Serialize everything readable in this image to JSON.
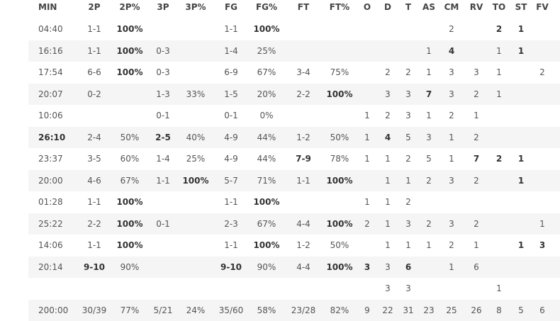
{
  "table": {
    "columns": [
      "MIN",
      "2P",
      "2P%",
      "3P",
      "3P%",
      "FG",
      "FG%",
      "FT",
      "FT%",
      "O",
      "D",
      "T",
      "AS",
      "CM",
      "RV",
      "TO",
      "ST",
      "FV"
    ],
    "rows": [
      [
        "04:40",
        "1-1",
        {
          "text": "100%",
          "bold": true
        },
        null,
        null,
        "1-1",
        {
          "text": "100%",
          "bold": true
        },
        null,
        null,
        null,
        null,
        null,
        null,
        "2",
        null,
        {
          "text": "2",
          "bold": true
        },
        {
          "text": "1",
          "bold": true
        },
        null
      ],
      [
        "16:16",
        "1-1",
        {
          "text": "100%",
          "bold": true
        },
        "0-3",
        null,
        "1-4",
        "25%",
        null,
        null,
        null,
        null,
        null,
        "1",
        {
          "text": "4",
          "bold": true
        },
        null,
        "1",
        {
          "text": "1",
          "bold": true
        },
        null
      ],
      [
        "17:54",
        "6-6",
        {
          "text": "100%",
          "bold": true
        },
        "0-3",
        null,
        "6-9",
        "67%",
        "3-4",
        "75%",
        null,
        "2",
        "2",
        "1",
        "3",
        "3",
        "1",
        null,
        "2"
      ],
      [
        "20:07",
        "0-2",
        null,
        "1-3",
        "33%",
        "1-5",
        "20%",
        "2-2",
        {
          "text": "100%",
          "bold": true
        },
        null,
        "3",
        "3",
        {
          "text": "7",
          "bold": true
        },
        "3",
        "2",
        "1",
        null,
        null
      ],
      [
        "10:06",
        null,
        null,
        "0-1",
        null,
        "0-1",
        "0%",
        null,
        null,
        "1",
        "2",
        "3",
        "1",
        "2",
        "1",
        null,
        null,
        null
      ],
      [
        {
          "text": "26:10",
          "bold": true
        },
        "2-4",
        "50%",
        {
          "text": "2-5",
          "bold": true
        },
        "40%",
        "4-9",
        "44%",
        "1-2",
        "50%",
        "1",
        {
          "text": "4",
          "bold": true
        },
        "5",
        "3",
        "1",
        "2",
        null,
        null,
        null
      ],
      [
        "23:37",
        "3-5",
        "60%",
        "1-4",
        "25%",
        "4-9",
        "44%",
        {
          "text": "7-9",
          "bold": true
        },
        "78%",
        "1",
        "1",
        "2",
        "5",
        "1",
        {
          "text": "7",
          "bold": true
        },
        {
          "text": "2",
          "bold": true
        },
        {
          "text": "1",
          "bold": true
        },
        null
      ],
      [
        "20:00",
        "4-6",
        "67%",
        "1-1",
        {
          "text": "100%",
          "bold": true
        },
        "5-7",
        "71%",
        "1-1",
        {
          "text": "100%",
          "bold": true
        },
        null,
        "1",
        "1",
        "2",
        "3",
        "2",
        null,
        {
          "text": "1",
          "bold": true
        },
        null
      ],
      [
        "01:28",
        "1-1",
        {
          "text": "100%",
          "bold": true
        },
        null,
        null,
        "1-1",
        {
          "text": "100%",
          "bold": true
        },
        null,
        null,
        "1",
        "1",
        "2",
        null,
        null,
        null,
        null,
        null,
        null
      ],
      [
        "25:22",
        "2-2",
        {
          "text": "100%",
          "bold": true
        },
        "0-1",
        null,
        "2-3",
        "67%",
        "4-4",
        {
          "text": "100%",
          "bold": true
        },
        "2",
        "1",
        "3",
        "2",
        "3",
        "2",
        null,
        null,
        "1"
      ],
      [
        "14:06",
        "1-1",
        {
          "text": "100%",
          "bold": true
        },
        null,
        null,
        "1-1",
        {
          "text": "100%",
          "bold": true
        },
        "1-2",
        "50%",
        null,
        "1",
        "1",
        "1",
        "2",
        "1",
        null,
        {
          "text": "1",
          "bold": true
        },
        {
          "text": "3",
          "bold": true
        }
      ],
      [
        "20:14",
        {
          "text": "9-10",
          "bold": true
        },
        "90%",
        null,
        null,
        {
          "text": "9-10",
          "bold": true
        },
        "90%",
        "4-4",
        {
          "text": "100%",
          "bold": true
        },
        {
          "text": "3",
          "bold": true
        },
        "3",
        {
          "text": "6",
          "bold": true
        },
        null,
        "1",
        "6",
        null,
        null,
        null
      ],
      [
        null,
        null,
        null,
        null,
        null,
        null,
        null,
        null,
        null,
        null,
        "3",
        "3",
        null,
        null,
        null,
        "1",
        null,
        null
      ],
      [
        "200:00",
        "30/39",
        "77%",
        "5/21",
        "24%",
        "35/60",
        "58%",
        "23/28",
        "82%",
        "9",
        "22",
        "31",
        "23",
        "25",
        "26",
        "8",
        "5",
        "6"
      ]
    ]
  }
}
